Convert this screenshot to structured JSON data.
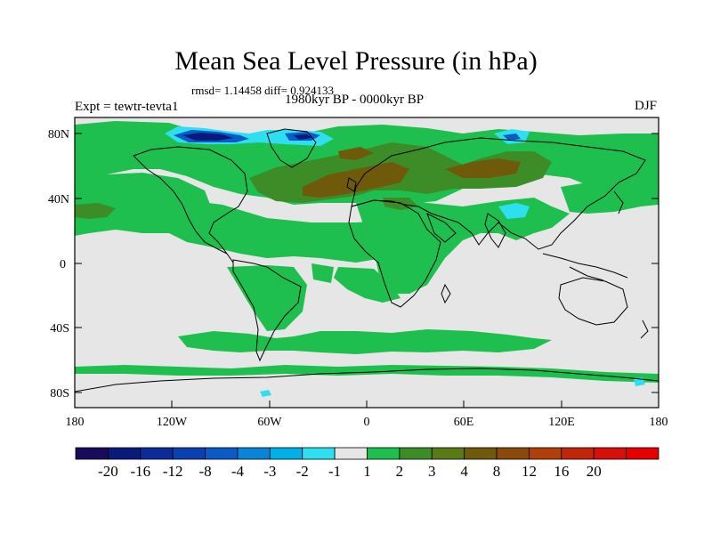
{
  "title": "Mean Sea Level Pressure (in hPa)",
  "stats": "rmsd= 1.14458 diff= 0.924133",
  "experiment": "Expt = tewtr-tevta1",
  "period": "1980kyr BP - 0000kyr BP",
  "season": "DJF",
  "lat_ticks": [
    "80N",
    "40N",
    "0",
    "40S",
    "80S"
  ],
  "lon_ticks": [
    "180",
    "120W",
    "60W",
    "0",
    "60E",
    "120E",
    "180"
  ],
  "colorbar": {
    "colors": [
      "#1a0a5a",
      "#0a1a7a",
      "#0d2a9a",
      "#0a40b0",
      "#0a5ac8",
      "#0a84d8",
      "#00b0e6",
      "#2ee0ef",
      "#e6e6e6",
      "#1fbf4f",
      "#3c8c28",
      "#5a7a14",
      "#6e5a0a",
      "#8a4a0a",
      "#b0400a",
      "#c2260a",
      "#d60f0a",
      "#e60000"
    ],
    "labels": [
      "-20",
      "-16",
      "-12",
      "-8",
      "-4",
      "-3",
      "-2",
      "-1",
      "1",
      "2",
      "3",
      "4",
      "8",
      "12",
      "16",
      "20"
    ]
  },
  "colors": {
    "background": "#e6e6e6",
    "positive_small": "#1fbf4f",
    "positive_medium": "#3c8c28",
    "positive_large": "#6e5a0a",
    "negative_small": "#2ee0ef",
    "negative_medium": "#0a5ac8",
    "negative_large": "#0a1a7a"
  }
}
